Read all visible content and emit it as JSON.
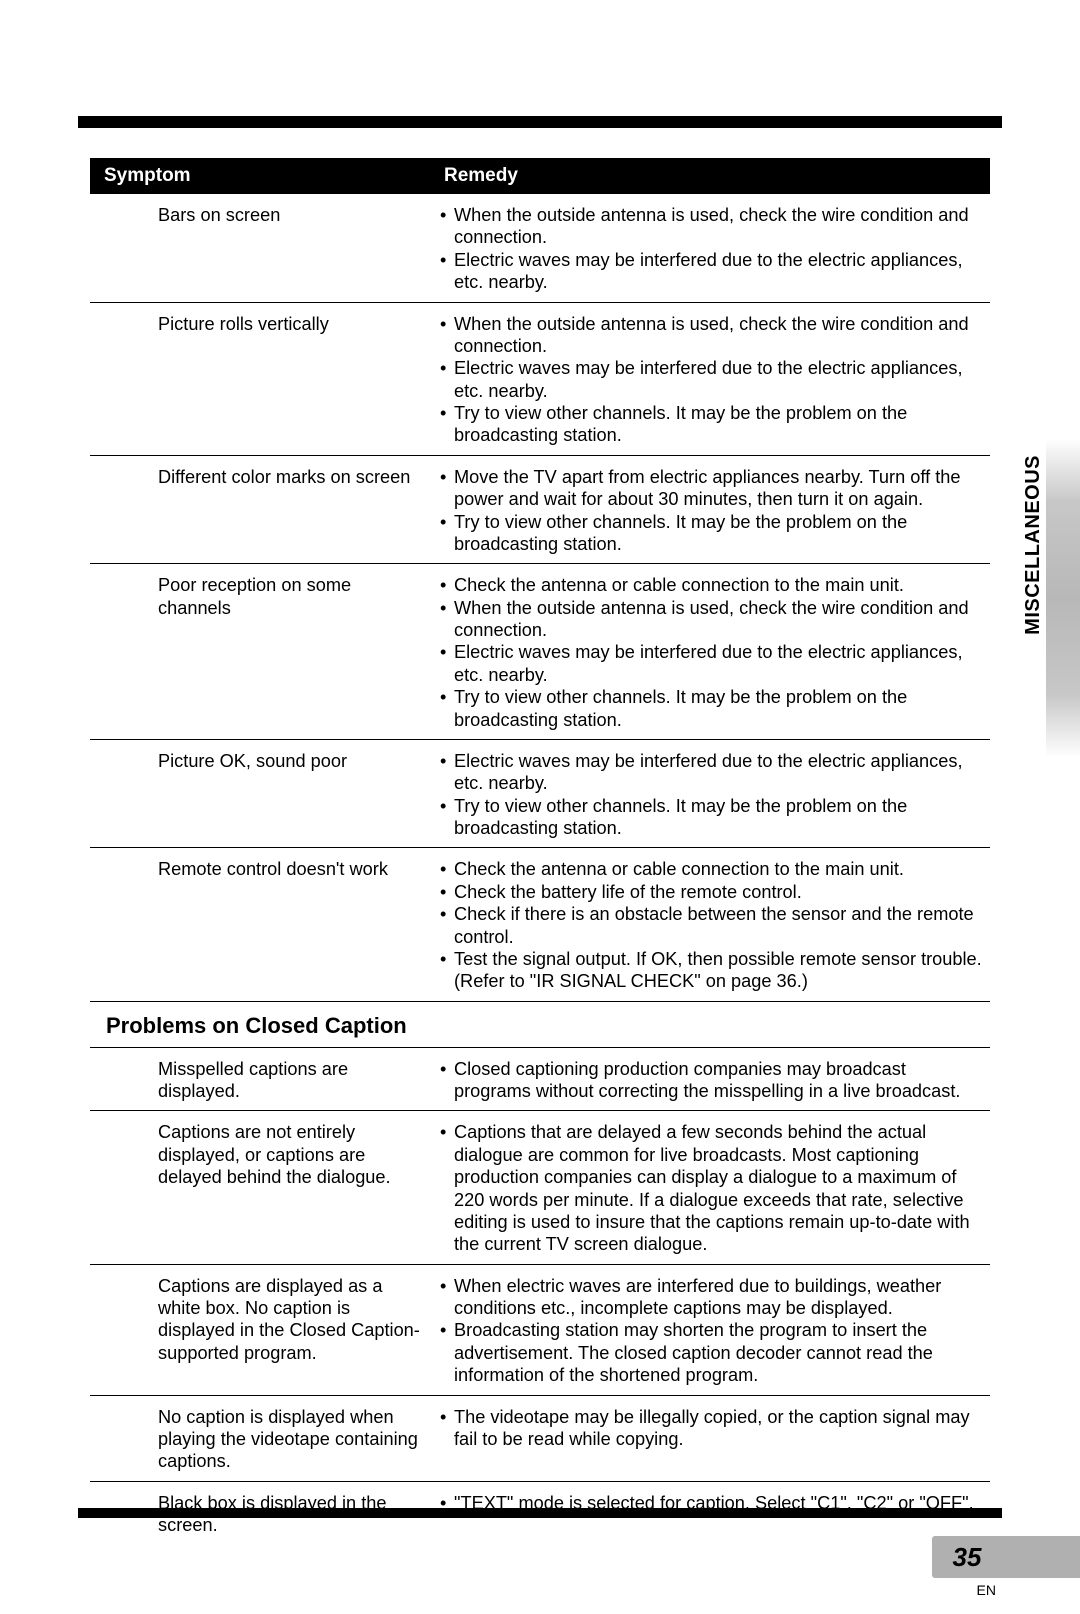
{
  "headers": {
    "symptom": "Symptom",
    "remedy": "Remedy"
  },
  "side_tab": "MISCELLANEOUS",
  "page_number": "35",
  "lang": "EN",
  "section2_title": "Problems on Closed Caption",
  "colors": {
    "bar": "#000000",
    "text": "#000000",
    "page_tab_bg": "#b0b0b0",
    "bg": "#ffffff"
  },
  "fonts": {
    "body_pt": 18,
    "header_pt": 19,
    "section_pt": 22,
    "pagenum_pt": 26
  },
  "rows1": [
    {
      "symptom": "Bars on screen",
      "remedy": [
        "When the outside antenna is used, check the wire condition and connection.",
        "Electric waves may be interfered due to the electric appliances, etc. nearby."
      ]
    },
    {
      "symptom": "Picture rolls vertically",
      "remedy": [
        "When the outside antenna is used, check the wire condition and connection.",
        "Electric waves may be interfered due to the electric appliances, etc. nearby.",
        "Try to view other channels. It may be the problem on the broadcasting station."
      ]
    },
    {
      "symptom": "Different color marks on screen",
      "remedy": [
        "Move the TV apart from electric appliances nearby. Turn off the power and wait for about 30 minutes, then turn it on again.",
        "Try to view other channels. It may be the problem on the broadcasting station."
      ]
    },
    {
      "symptom": "Poor reception on some channels",
      "remedy": [
        "Check the antenna or cable connection to the main unit.",
        "When the outside antenna is used, check the wire condition and connection.",
        "Electric waves may be interfered due to the electric appliances, etc. nearby.",
        "Try to view other channels. It may be the problem on the broadcasting station."
      ]
    },
    {
      "symptom": "Picture OK, sound poor",
      "remedy": [
        "Electric waves may be interfered due to the electric appliances, etc. nearby.",
        "Try to view other channels. It may be the problem on the broadcasting station."
      ]
    },
    {
      "symptom": "Remote control doesn't work",
      "remedy": [
        "Check the antenna or cable connection to the main unit.",
        "Check the battery life of the remote control.",
        "Check if there is an obstacle between the sensor and the remote control.",
        "Test the signal output. If OK, then possible remote sensor trouble. (Refer to \"IR SIGNAL CHECK\" on page 36.)"
      ]
    }
  ],
  "rows2": [
    {
      "symptom": "Misspelled captions are displayed.",
      "remedy": [
        "Closed captioning production companies may broadcast programs without correcting the misspelling in a live broadcast."
      ]
    },
    {
      "symptom": "Captions are not entirely displayed, or captions are delayed behind the dialogue.",
      "remedy": [
        "Captions that are delayed a few seconds behind the actual dialogue are common for live broadcasts. Most captioning production companies can display a dialogue to a maximum of 220 words per minute. If a dialogue exceeds that rate, selective editing is used to insure that the captions remain up-to-date with the current TV screen dialogue."
      ]
    },
    {
      "symptom": "Captions are displayed as a white box. No caption is displayed in the Closed Caption-supported program.",
      "remedy": [
        "When electric waves are interfered due to buildings, weather conditions etc., incomplete captions may be displayed.",
        "Broadcasting station may shorten the program to insert the advertisement. The closed caption decoder cannot read the information of the shortened program."
      ]
    },
    {
      "symptom": "No caption is displayed when playing the videotape containing captions.",
      "remedy": [
        "The videotape may be illegally copied, or the caption signal may fail to be read while copying."
      ]
    },
    {
      "symptom": "Black box is displayed in the screen.",
      "remedy": [
        "\"TEXT\" mode is selected for caption. Select \"C1\", \"C2\" or \"OFF\"."
      ]
    }
  ]
}
